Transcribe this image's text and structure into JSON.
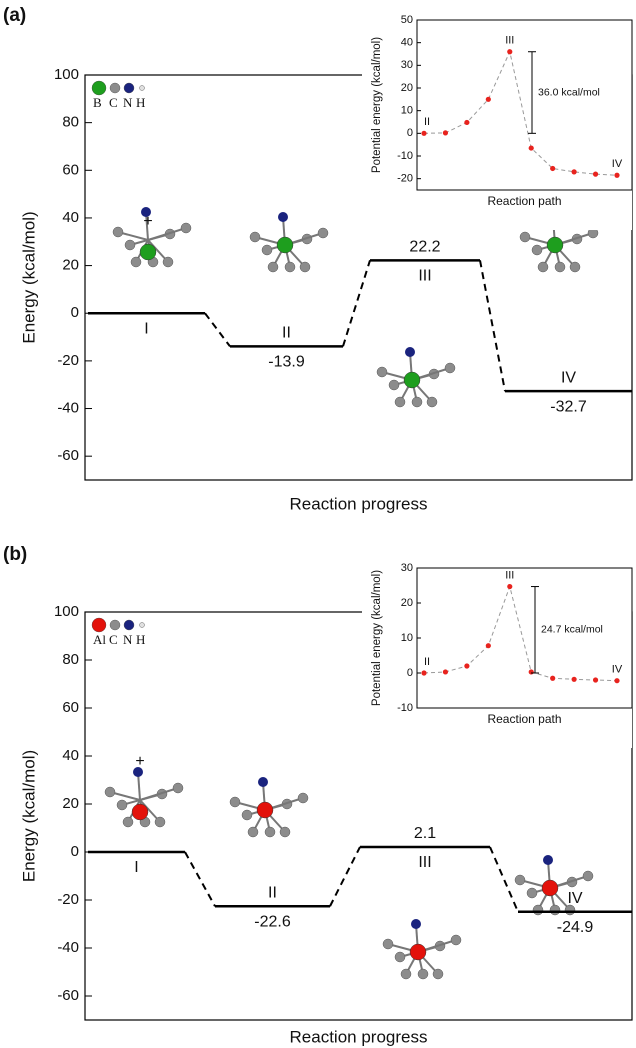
{
  "chart_data": [
    {
      "type": "energy",
      "panel_label": "(a)",
      "ylabel": "Energy (kcal/mol)",
      "xlabel": "Reaction progress",
      "ylim": [
        -70,
        100
      ],
      "yticks": [
        -60,
        -40,
        -20,
        0,
        20,
        40,
        60,
        80,
        100
      ],
      "categories": [
        "I",
        "II",
        "III",
        "IV"
      ],
      "values": [
        0,
        -13.9,
        22.2,
        -32.7
      ],
      "color": "#000000",
      "atom_legend": [
        "B",
        "C",
        "N",
        "H"
      ],
      "atom_colors": [
        "#1e9e1e",
        "#8c8c8c",
        "#1a237e",
        "#e0e0e0"
      ],
      "annotations": [
        "+"
      ]
    },
    {
      "type": "line",
      "ylabel": "Potential energy (kcal/mol)",
      "xlabel": "Reaction path",
      "ylim": [
        -25,
        50
      ],
      "yticks": [
        -20,
        -10,
        0,
        10,
        20,
        30,
        40,
        50
      ],
      "categories": [
        "II",
        null,
        null,
        null,
        "III",
        null,
        null,
        null,
        null,
        "IV"
      ],
      "values": [
        0,
        0.2,
        4.8,
        15,
        36,
        -6.5,
        -15.5,
        -17,
        -18,
        -18.5
      ],
      "color": "#e8231e",
      "line_color": "#999999",
      "annotation": "36.0 kcal/mol"
    },
    {
      "type": "energy",
      "panel_label": "(b)",
      "ylabel": "Energy (kcal/mol)",
      "xlabel": "Reaction progress",
      "ylim": [
        -70,
        100
      ],
      "yticks": [
        -60,
        -40,
        -20,
        0,
        20,
        40,
        60,
        80,
        100
      ],
      "categories": [
        "I",
        "II",
        "III",
        "IV"
      ],
      "values": [
        0,
        -22.6,
        2.1,
        -24.9
      ],
      "color": "#000000",
      "atom_legend": [
        "Al",
        "C",
        "N",
        "H"
      ],
      "atom_colors": [
        "#e3120b",
        "#8c8c8c",
        "#1a237e",
        "#e0e0e0"
      ],
      "annotations": [
        "+"
      ]
    },
    {
      "type": "line",
      "ylabel": "Potential energy (kcal/mol)",
      "xlabel": "Reaction path",
      "ylim": [
        -10,
        30
      ],
      "yticks": [
        -10,
        0,
        10,
        20,
        30
      ],
      "categories": [
        "II",
        null,
        null,
        null,
        "III",
        null,
        null,
        null,
        null,
        "IV"
      ],
      "values": [
        0,
        0.3,
        2,
        7.8,
        24.7,
        0.3,
        -1.5,
        -1.8,
        -2,
        -2.2
      ],
      "color": "#e8231e",
      "line_color": "#999999",
      "annotation": "24.7 kcal/mol"
    }
  ]
}
